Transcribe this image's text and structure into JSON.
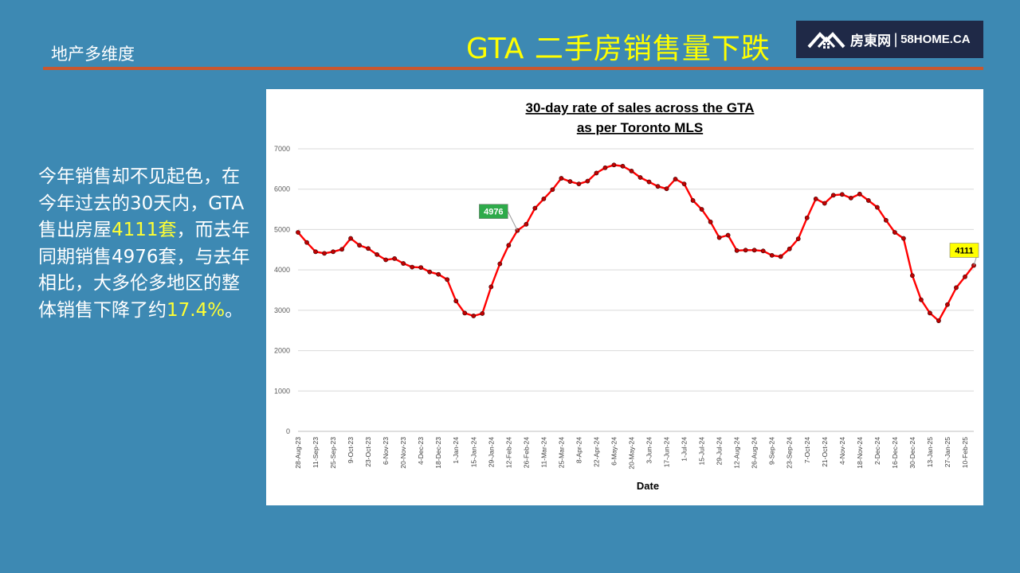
{
  "header": {
    "section_label": "地产多维度",
    "title": "GTA 二手房销售量下跌"
  },
  "logo": {
    "name_cn": "房東网",
    "separator": "|",
    "name_en": "58HOME.CA"
  },
  "body": {
    "p1": "今年销售却不见起色，在今年过去的30天内，GTA售出房屋",
    "h1": "4111套",
    "p2": "，而去年同期销售4976套，与去年相比，大多伦多地区的整体销售下降了约",
    "h2": "17.4%",
    "p3": "。"
  },
  "chart_data": {
    "type": "line",
    "title": "30-day rate of sales across the GTA",
    "subtitle": "as per Toronto MLS",
    "xlabel": "Date",
    "ylabel": "",
    "ylim": [
      0,
      7000
    ],
    "yticks": [
      0,
      1000,
      2000,
      3000,
      4000,
      5000,
      6000,
      7000
    ],
    "grid": true,
    "x_tick_labels": [
      "28-Aug-23",
      "11-Sep-23",
      "25-Sep-23",
      "9-Oct-23",
      "23-Oct-23",
      "6-Nov-23",
      "20-Nov-23",
      "4-Dec-23",
      "18-Dec-23",
      "1-Jan-24",
      "15-Jan-24",
      "29-Jan-24",
      "12-Feb-24",
      "26-Feb-24",
      "11-Mar-24",
      "25-Mar-24",
      "8-Apr-24",
      "22-Apr-24",
      "6-May-24",
      "20-May-24",
      "3-Jun-24",
      "17-Jun-24",
      "1-Jul-24",
      "15-Jul-24",
      "29-Jul-24",
      "12-Aug-24",
      "26-Aug-24",
      "9-Sep-24",
      "23-Sep-24",
      "7-Oct-24",
      "21-Oct-24",
      "4-Nov-24",
      "18-Nov-24",
      "2-Dec-24",
      "16-Dec-24",
      "30-Dec-24",
      "13-Jan-25",
      "27-Jan-25",
      "10-Feb-25"
    ],
    "series": [
      {
        "color": "#ff0000",
        "marker_color": "#c00000",
        "values": [
          4930,
          4680,
          4450,
          4410,
          4450,
          4510,
          4780,
          4610,
          4530,
          4380,
          4250,
          4280,
          4160,
          4070,
          4060,
          3950,
          3890,
          3760,
          3230,
          2930,
          2860,
          2920,
          3580,
          4150,
          4610,
          4976,
          5130,
          5530,
          5760,
          5990,
          6270,
          6190,
          6130,
          6200,
          6400,
          6530,
          6600,
          6570,
          6450,
          6290,
          6180,
          6070,
          6010,
          6250,
          6130,
          5720,
          5500,
          5190,
          4800,
          4860,
          4480,
          4490,
          4490,
          4470,
          4360,
          4330,
          4520,
          4770,
          5290,
          5760,
          5650,
          5850,
          5870,
          5780,
          5880,
          5720,
          5550,
          5230,
          4930,
          4780,
          3860,
          3260,
          2930,
          2740,
          3140,
          3560,
          3830,
          4111
        ]
      }
    ],
    "annotations": [
      {
        "label": "4976",
        "index": 25,
        "color": "#2eaa4a",
        "text_color": "#ffffff"
      },
      {
        "label": "4111",
        "index": 77,
        "color": "#ffff00",
        "text_color": "#000000"
      }
    ]
  }
}
